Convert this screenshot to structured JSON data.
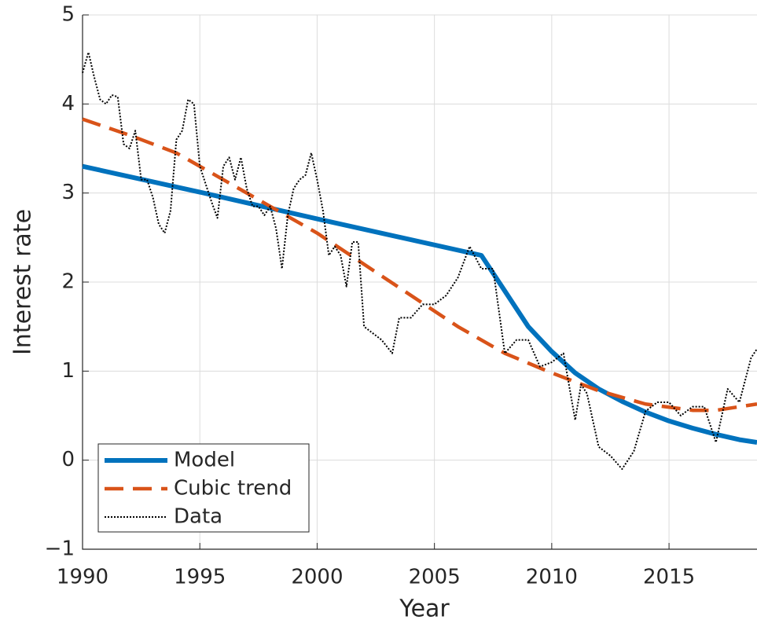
{
  "chart_data": {
    "type": "line",
    "xlabel": "Year",
    "ylabel": "Interest rate",
    "xlim": [
      1990,
      2018.75
    ],
    "ylim": [
      -1,
      5
    ],
    "xticks": [
      1990,
      1995,
      2000,
      2005,
      2010,
      2015
    ],
    "yticks": [
      {
        "value": -1,
        "label": "−1"
      },
      0,
      1,
      2,
      3,
      4,
      5
    ],
    "grid": true,
    "legend": "lower left",
    "series": [
      {
        "name": "Model",
        "color": "#0072bd",
        "style": "solid",
        "x": [
          1990,
          1995,
          2000,
          2007,
          2008,
          2009,
          2010,
          2011,
          2012,
          2013,
          2014,
          2015,
          2016,
          2017,
          2018,
          2018.75
        ],
        "values": [
          3.3,
          3.01,
          2.71,
          2.3,
          1.9,
          1.5,
          1.22,
          0.98,
          0.8,
          0.66,
          0.54,
          0.44,
          0.36,
          0.29,
          0.23,
          0.2
        ]
      },
      {
        "name": "Cubic trend",
        "color": "#d95319",
        "style": "dashed",
        "x": [
          1990,
          1992,
          1994,
          1996,
          1998,
          2000,
          2002,
          2004,
          2006,
          2008,
          2010,
          2012,
          2014,
          2016,
          2017,
          2018.75
        ],
        "values": [
          3.83,
          3.65,
          3.45,
          3.15,
          2.85,
          2.55,
          2.2,
          1.85,
          1.5,
          1.2,
          0.98,
          0.78,
          0.63,
          0.56,
          0.56,
          0.63
        ]
      },
      {
        "name": "Data",
        "color": "#000000",
        "style": "dotted",
        "x": [
          1990,
          1990.25,
          1990.5,
          1990.75,
          1991,
          1991.25,
          1991.5,
          1991.75,
          1992,
          1992.25,
          1992.5,
          1992.75,
          1993,
          1993.25,
          1993.5,
          1993.75,
          1994,
          1994.25,
          1994.5,
          1994.75,
          1995,
          1995.25,
          1995.5,
          1995.75,
          1996,
          1996.25,
          1996.5,
          1996.75,
          1997,
          1997.25,
          1997.5,
          1997.75,
          1998,
          1998.25,
          1998.5,
          1998.75,
          1999,
          1999.25,
          1999.5,
          1999.75,
          2000,
          2000.25,
          2000.5,
          2000.75,
          2001,
          2001.25,
          2001.5,
          2001.75,
          2002,
          2002.25,
          2002.75,
          2003.2,
          2003.5,
          2004,
          2004.5,
          2005,
          2005.5,
          2006,
          2006.5,
          2007,
          2007.5,
          2008,
          2008.5,
          2009,
          2009.5,
          2010,
          2010.5,
          2011,
          2011.25,
          2011.5,
          2012,
          2012.5,
          2013,
          2013.5,
          2014,
          2014.5,
          2015,
          2015.5,
          2016,
          2016.5,
          2017,
          2017.5,
          2018,
          2018.5,
          2018.75
        ],
        "values": [
          4.35,
          4.58,
          4.3,
          4.05,
          4.0,
          4.1,
          4.08,
          3.55,
          3.5,
          3.7,
          3.15,
          3.15,
          2.95,
          2.65,
          2.55,
          2.8,
          3.6,
          3.7,
          4.05,
          4.0,
          3.3,
          3.1,
          2.9,
          2.72,
          3.3,
          3.4,
          3.15,
          3.4,
          3.05,
          2.85,
          2.85,
          2.75,
          2.85,
          2.6,
          2.15,
          2.75,
          3.05,
          3.15,
          3.2,
          3.45,
          3.15,
          2.8,
          2.3,
          2.4,
          2.3,
          1.95,
          2.45,
          2.45,
          1.5,
          1.45,
          1.35,
          1.2,
          1.6,
          1.6,
          1.75,
          1.75,
          1.85,
          2.05,
          2.4,
          2.15,
          2.15,
          1.2,
          1.35,
          1.35,
          1.05,
          1.1,
          1.2,
          0.45,
          0.85,
          0.75,
          0.15,
          0.05,
          -0.1,
          0.1,
          0.55,
          0.65,
          0.65,
          0.5,
          0.6,
          0.6,
          0.2,
          0.8,
          0.65,
          1.15,
          1.25
        ]
      }
    ]
  }
}
